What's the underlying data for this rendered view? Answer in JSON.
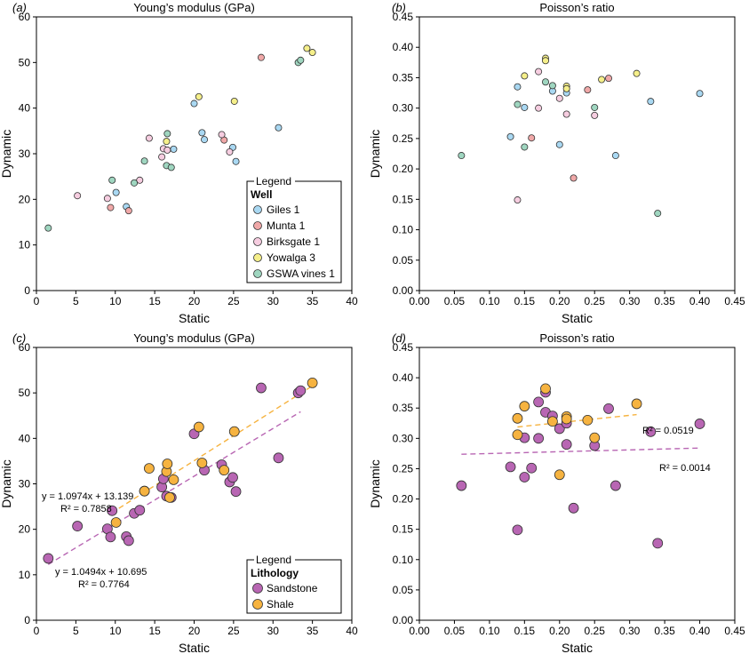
{
  "colors": {
    "Giles 1": "#a9d8f2",
    "Munta 1": "#f0a8a8",
    "Birksgate 1": "#f6cde0",
    "Yowalga 3": "#f5ef8a",
    "GSWA vines 1": "#9fd6c0",
    "Sandstone": "#b866b3",
    "Shale": "#f6b340"
  },
  "chart_data": [
    {
      "panel": "(a)",
      "type": "scatter",
      "title": "Young’s modulus (GPa)",
      "xlabel": "Static",
      "ylabel": "Dynamic",
      "xlim": [
        0,
        40
      ],
      "ylim": [
        0,
        60
      ],
      "xticks": [
        0,
        5,
        10,
        15,
        20,
        25,
        30,
        35,
        40
      ],
      "yticks": [
        0,
        10,
        20,
        30,
        40,
        50,
        60
      ],
      "legend": {
        "position": "lower-right",
        "title": "Legend",
        "heading": "Well"
      },
      "series": [
        {
          "name": "Giles 1",
          "color": "Giles 1",
          "points": [
            [
              10.1,
              21.5
            ],
            [
              11.4,
              18.4
            ],
            [
              17.4,
              31.0
            ],
            [
              20.0,
              41.0
            ],
            [
              21.0,
              34.6
            ],
            [
              21.3,
              33.1
            ],
            [
              24.9,
              31.4
            ],
            [
              25.3,
              28.3
            ],
            [
              30.7,
              35.7
            ]
          ]
        },
        {
          "name": "Munta 1",
          "color": "Munta 1",
          "points": [
            [
              9.4,
              18.2
            ],
            [
              11.7,
              17.5
            ],
            [
              23.8,
              33.0
            ],
            [
              28.5,
              51.1
            ]
          ]
        },
        {
          "name": "Birksgate 1",
          "color": "Birksgate 1",
          "points": [
            [
              5.2,
              20.8
            ],
            [
              9.0,
              20.2
            ],
            [
              13.1,
              24.2
            ],
            [
              14.3,
              33.4
            ],
            [
              15.9,
              29.3
            ],
            [
              16.1,
              31.1
            ],
            [
              16.6,
              30.8
            ],
            [
              23.5,
              34.2
            ],
            [
              24.5,
              30.4
            ]
          ]
        },
        {
          "name": "Yowalga 3",
          "color": "Yowalga 3",
          "points": [
            [
              16.5,
              32.7
            ],
            [
              20.6,
              42.5
            ],
            [
              25.1,
              41.5
            ],
            [
              34.3,
              53.1
            ],
            [
              35.0,
              52.2
            ]
          ]
        },
        {
          "name": "GSWA vines 1",
          "color": "GSWA vines 1",
          "points": [
            [
              1.5,
              13.7
            ],
            [
              9.6,
              24.2
            ],
            [
              12.4,
              23.6
            ],
            [
              13.7,
              28.4
            ],
            [
              16.5,
              27.4
            ],
            [
              16.6,
              34.4
            ],
            [
              17.1,
              27.0
            ],
            [
              33.2,
              50.0
            ],
            [
              33.5,
              50.5
            ]
          ]
        }
      ]
    },
    {
      "panel": "(b)",
      "type": "scatter",
      "title": "Poisson’s ratio",
      "xlabel": "Static",
      "ylabel": "Dynamic",
      "xlim": [
        0,
        0.45
      ],
      "ylim": [
        0,
        0.45
      ],
      "xticks": [
        0,
        0.05,
        0.1,
        0.15,
        0.2,
        0.25,
        0.3,
        0.35,
        0.4,
        0.45
      ],
      "yticks": [
        0,
        0.05,
        0.1,
        0.15,
        0.2,
        0.25,
        0.3,
        0.35,
        0.4,
        0.45
      ],
      "series": [
        {
          "name": "Giles 1",
          "color": "Giles 1",
          "points": [
            [
              0.13,
              0.253
            ],
            [
              0.14,
              0.335
            ],
            [
              0.15,
              0.301
            ],
            [
              0.19,
              0.328
            ],
            [
              0.2,
              0.24
            ],
            [
              0.21,
              0.325
            ],
            [
              0.28,
              0.222
            ],
            [
              0.33,
              0.311
            ],
            [
              0.4,
              0.324
            ]
          ]
        },
        {
          "name": "Munta 1",
          "color": "Munta 1",
          "points": [
            [
              0.16,
              0.251
            ],
            [
              0.22,
              0.185
            ],
            [
              0.24,
              0.33
            ],
            [
              0.27,
              0.349
            ]
          ]
        },
        {
          "name": "Birksgate 1",
          "color": "Birksgate 1",
          "points": [
            [
              0.14,
              0.149
            ],
            [
              0.17,
              0.3
            ],
            [
              0.17,
              0.36
            ],
            [
              0.2,
              0.316
            ],
            [
              0.21,
              0.29
            ],
            [
              0.25,
              0.288
            ]
          ]
        },
        {
          "name": "Yowalga 3",
          "color": "Yowalga 3",
          "points": [
            [
              0.15,
              0.353
            ],
            [
              0.18,
              0.382
            ],
            [
              0.18,
              0.378
            ],
            [
              0.21,
              0.336
            ],
            [
              0.21,
              0.332
            ],
            [
              0.26,
              0.347
            ],
            [
              0.31,
              0.357
            ]
          ]
        },
        {
          "name": "GSWA vines 1",
          "color": "GSWA vines 1",
          "points": [
            [
              0.06,
              0.222
            ],
            [
              0.14,
              0.306
            ],
            [
              0.15,
              0.236
            ],
            [
              0.18,
              0.343
            ],
            [
              0.19,
              0.337
            ],
            [
              0.25,
              0.301
            ],
            [
              0.34,
              0.127
            ]
          ]
        }
      ]
    },
    {
      "panel": "(c)",
      "type": "scatter",
      "title": "Young’s modulus (GPa)",
      "xlabel": "Static",
      "ylabel": "Dynamic",
      "xlim": [
        0,
        40
      ],
      "ylim": [
        0,
        60
      ],
      "xticks": [
        0,
        5,
        10,
        15,
        20,
        25,
        30,
        35,
        40
      ],
      "yticks": [
        0,
        10,
        20,
        30,
        40,
        50,
        60
      ],
      "legend": {
        "position": "lower-right",
        "title": "Legend",
        "heading": "Lithology"
      },
      "series": [
        {
          "name": "Sandstone",
          "color": "Sandstone",
          "points": [
            [
              1.5,
              13.6
            ],
            [
              5.2,
              20.7
            ],
            [
              9.0,
              20.1
            ],
            [
              9.4,
              18.3
            ],
            [
              9.6,
              24.1
            ],
            [
              11.4,
              18.4
            ],
            [
              11.7,
              17.5
            ],
            [
              12.4,
              23.5
            ],
            [
              13.1,
              24.2
            ],
            [
              13.7,
              28.4
            ],
            [
              15.9,
              29.3
            ],
            [
              16.1,
              31.1
            ],
            [
              16.5,
              27.3
            ],
            [
              17.1,
              27.0
            ],
            [
              20.0,
              41.0
            ],
            [
              21.3,
              33.0
            ],
            [
              23.5,
              34.2
            ],
            [
              24.5,
              30.4
            ],
            [
              24.9,
              31.4
            ],
            [
              25.3,
              28.3
            ],
            [
              28.5,
              51.1
            ],
            [
              30.7,
              35.7
            ],
            [
              33.2,
              50.0
            ],
            [
              33.5,
              50.5
            ]
          ]
        },
        {
          "name": "Shale",
          "color": "Shale",
          "points": [
            [
              10.1,
              21.5
            ],
            [
              14.3,
              33.4
            ],
            [
              13.7,
              28.4
            ],
            [
              16.5,
              32.7
            ],
            [
              16.6,
              34.4
            ],
            [
              16.9,
              27.0
            ],
            [
              17.4,
              30.9
            ],
            [
              20.6,
              42.5
            ],
            [
              21.0,
              34.6
            ],
            [
              23.8,
              33.0
            ],
            [
              25.1,
              41.5
            ],
            [
              35.0,
              52.2
            ]
          ]
        }
      ],
      "fits": [
        {
          "series": "Shale",
          "equation": "y = 1.0974x + 13.139",
          "r2": "R² = 0.7858",
          "slope": 1.0974,
          "intercept": 13.139,
          "xrange": [
            9.5,
            35
          ]
        },
        {
          "series": "Sandstone",
          "equation": "y = 1.0494x + 10.695",
          "r2": "R² = 0.7764",
          "slope": 1.0494,
          "intercept": 10.695,
          "xrange": [
            1.5,
            33.5
          ]
        }
      ]
    },
    {
      "panel": "(d)",
      "type": "scatter",
      "title": "Poisson’s ratio",
      "xlabel": "Static",
      "ylabel": "Dynamic",
      "xlim": [
        0,
        0.45
      ],
      "ylim": [
        0,
        0.45
      ],
      "xticks": [
        0,
        0.05,
        0.1,
        0.15,
        0.2,
        0.25,
        0.3,
        0.35,
        0.4,
        0.45
      ],
      "yticks": [
        0,
        0.05,
        0.1,
        0.15,
        0.2,
        0.25,
        0.3,
        0.35,
        0.4,
        0.45
      ],
      "series": [
        {
          "name": "Sandstone",
          "color": "Sandstone",
          "points": [
            [
              0.06,
              0.222
            ],
            [
              0.13,
              0.253
            ],
            [
              0.14,
              0.149
            ],
            [
              0.15,
              0.236
            ],
            [
              0.15,
              0.301
            ],
            [
              0.16,
              0.251
            ],
            [
              0.17,
              0.3
            ],
            [
              0.17,
              0.36
            ],
            [
              0.18,
              0.343
            ],
            [
              0.18,
              0.376
            ],
            [
              0.19,
              0.337
            ],
            [
              0.2,
              0.316
            ],
            [
              0.21,
              0.29
            ],
            [
              0.21,
              0.325
            ],
            [
              0.22,
              0.185
            ],
            [
              0.25,
              0.288
            ],
            [
              0.27,
              0.349
            ],
            [
              0.28,
              0.222
            ],
            [
              0.33,
              0.311
            ],
            [
              0.34,
              0.127
            ],
            [
              0.4,
              0.324
            ]
          ]
        },
        {
          "name": "Shale",
          "color": "Shale",
          "points": [
            [
              0.14,
              0.306
            ],
            [
              0.14,
              0.333
            ],
            [
              0.15,
              0.353
            ],
            [
              0.18,
              0.382
            ],
            [
              0.19,
              0.328
            ],
            [
              0.2,
              0.24
            ],
            [
              0.21,
              0.336
            ],
            [
              0.21,
              0.332
            ],
            [
              0.24,
              0.33
            ],
            [
              0.25,
              0.301
            ],
            [
              0.31,
              0.357
            ]
          ]
        }
      ],
      "fits": [
        {
          "series": "Shale",
          "r2": "R² = 0.0519",
          "slope": 0.12,
          "intercept": 0.302,
          "xrange": [
            0.14,
            0.31
          ]
        },
        {
          "series": "Sandstone",
          "r2": "R² = 0.0014",
          "slope": 0.03,
          "intercept": 0.272,
          "xrange": [
            0.06,
            0.4
          ]
        }
      ]
    }
  ]
}
